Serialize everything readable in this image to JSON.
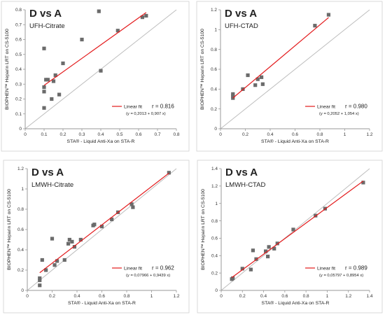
{
  "chart_data": [
    {
      "type": "scatter",
      "title": "D vs A",
      "subtitle": "UFH-Citrate",
      "xlabel": "STA® - Liquid Anti-Xa on STA-R",
      "ylabel": "BIOPHEN™ Heparin LRT on CS-5100",
      "xlim": [
        0,
        0.8
      ],
      "ylim": [
        0,
        0.8
      ],
      "xticks": [
        "0",
        "0.1",
        "0.2",
        "0.3",
        "0.4",
        "0.5",
        "0.6",
        "0.7",
        "0.8"
      ],
      "yticks": [
        "0",
        "0.1",
        "0.2",
        "0.3",
        "0.4",
        "0.5",
        "0.6",
        "0.7",
        "0.8"
      ],
      "tick_step": 0.1,
      "points": [
        {
          "x": 0.1,
          "y": 0.14
        },
        {
          "x": 0.1,
          "y": 0.28
        },
        {
          "x": 0.1,
          "y": 0.54
        },
        {
          "x": 0.11,
          "y": 0.33
        },
        {
          "x": 0.12,
          "y": 0.33
        },
        {
          "x": 0.14,
          "y": 0.2
        },
        {
          "x": 0.15,
          "y": 0.32
        },
        {
          "x": 0.16,
          "y": 0.36
        },
        {
          "x": 0.18,
          "y": 0.23
        },
        {
          "x": 0.2,
          "y": 0.44
        },
        {
          "x": 0.1,
          "y": 0.25
        },
        {
          "x": 0.3,
          "y": 0.6
        },
        {
          "x": 0.39,
          "y": 0.79
        },
        {
          "x": 0.4,
          "y": 0.39
        },
        {
          "x": 0.49,
          "y": 0.66
        },
        {
          "x": 0.62,
          "y": 0.75
        },
        {
          "x": 0.64,
          "y": 0.76
        }
      ],
      "fit": {
        "intercept": 0.2013,
        "slope": 0.907,
        "x_range": [
          0.1,
          0.64
        ]
      },
      "legend": {
        "label": "Linear fit",
        "r": "r = 0.816",
        "equation": "(y = 0,2013 + 0,907 x)",
        "position": "bottom-right"
      },
      "identity_line": true,
      "grid": false
    },
    {
      "type": "scatter",
      "title": "D vs A",
      "subtitle": "UFH-CTAD",
      "xlabel": "STA® - Liquid Anti-Xa on STA-R",
      "ylabel": "BIOPHEN™ Heparin LRT on CS-5100",
      "xlim": [
        0,
        1.2
      ],
      "ylim": [
        0,
        1.2
      ],
      "xticks": [
        "0",
        "0.2",
        "0.4",
        "0.6",
        "0.8",
        "1",
        "1.2"
      ],
      "yticks": [
        "0",
        "0.2",
        "0.4",
        "0.6",
        "0.8",
        "1",
        "1.2"
      ],
      "tick_step": 0.2,
      "points": [
        {
          "x": 0.1,
          "y": 0.35
        },
        {
          "x": 0.1,
          "y": 0.31
        },
        {
          "x": 0.1,
          "y": 0.33
        },
        {
          "x": 0.18,
          "y": 0.4
        },
        {
          "x": 0.22,
          "y": 0.54
        },
        {
          "x": 0.28,
          "y": 0.44
        },
        {
          "x": 0.3,
          "y": 0.5
        },
        {
          "x": 0.33,
          "y": 0.52
        },
        {
          "x": 0.34,
          "y": 0.45
        },
        {
          "x": 0.76,
          "y": 1.04
        },
        {
          "x": 0.87,
          "y": 1.15
        }
      ],
      "fit": {
        "intercept": 0.2052,
        "slope": 1.054,
        "x_range": [
          0.1,
          0.87
        ]
      },
      "legend": {
        "label": "Linear fit",
        "r": "r = 0.980",
        "equation": "(y = 0,2052 + 1,054 x)",
        "position": "bottom-right"
      },
      "identity_line": true,
      "grid": false
    },
    {
      "type": "scatter",
      "title": "D vs A",
      "subtitle": "LMWH-Citrate",
      "xlabel": "STA® - Liquid Anti-Xa on STA-R",
      "ylabel": "BIOPHEN™ Heparin LRT on CS-5100",
      "xlim": [
        0,
        1.2
      ],
      "ylim": [
        0,
        1.2
      ],
      "xticks": [
        "0",
        "0.2",
        "0.4",
        "0.6",
        "0.8",
        "1",
        "1.2"
      ],
      "yticks": [
        "0",
        "0.2",
        "0.4",
        "0.6",
        "0.8",
        "1",
        "1.2"
      ],
      "tick_step": 0.2,
      "points": [
        {
          "x": 0.1,
          "y": 0.05
        },
        {
          "x": 0.1,
          "y": 0.1
        },
        {
          "x": 0.1,
          "y": 0.12
        },
        {
          "x": 0.12,
          "y": 0.3
        },
        {
          "x": 0.15,
          "y": 0.2
        },
        {
          "x": 0.2,
          "y": 0.51
        },
        {
          "x": 0.22,
          "y": 0.25
        },
        {
          "x": 0.24,
          "y": 0.29
        },
        {
          "x": 0.3,
          "y": 0.3
        },
        {
          "x": 0.33,
          "y": 0.46
        },
        {
          "x": 0.34,
          "y": 0.5
        },
        {
          "x": 0.36,
          "y": 0.48
        },
        {
          "x": 0.38,
          "y": 0.43
        },
        {
          "x": 0.43,
          "y": 0.5
        },
        {
          "x": 0.53,
          "y": 0.64
        },
        {
          "x": 0.54,
          "y": 0.65
        },
        {
          "x": 0.6,
          "y": 0.63
        },
        {
          "x": 0.68,
          "y": 0.7
        },
        {
          "x": 0.73,
          "y": 0.77
        },
        {
          "x": 0.84,
          "y": 0.85
        },
        {
          "x": 0.85,
          "y": 0.82
        },
        {
          "x": 1.14,
          "y": 1.16
        }
      ],
      "fit": {
        "intercept": 0.07966,
        "slope": 0.9439,
        "x_range": [
          0.1,
          1.14
        ]
      },
      "legend": {
        "label": "Linear fit",
        "r": "r = 0.962",
        "equation": "(y = 0,07966 + 0,9439 x)",
        "position": "bottom-right"
      },
      "identity_line": true,
      "grid": false
    },
    {
      "type": "scatter",
      "title": "D vs A",
      "subtitle": "LMWH-CTAD",
      "xlabel": "STA® - Liquid Anti-Xa on STA-R",
      "ylabel": "BIOPHEN™ Heparin LRT on CS-5100",
      "xlim": [
        0,
        1.4
      ],
      "ylim": [
        0,
        1.4
      ],
      "xticks": [
        "0",
        "0.2",
        "0.4",
        "0.6",
        "0.8",
        "1",
        "1.2",
        "1.4"
      ],
      "yticks": [
        "0",
        "0.2",
        "0.4",
        "0.6",
        "0.8",
        "1",
        "1.2",
        "1.4"
      ],
      "tick_step": 0.2,
      "points": [
        {
          "x": 0.1,
          "y": 0.13
        },
        {
          "x": 0.11,
          "y": 0.14
        },
        {
          "x": 0.2,
          "y": 0.25
        },
        {
          "x": 0.28,
          "y": 0.24
        },
        {
          "x": 0.3,
          "y": 0.46
        },
        {
          "x": 0.33,
          "y": 0.36
        },
        {
          "x": 0.42,
          "y": 0.45
        },
        {
          "x": 0.44,
          "y": 0.39
        },
        {
          "x": 0.45,
          "y": 0.5
        },
        {
          "x": 0.5,
          "y": 0.48
        },
        {
          "x": 0.53,
          "y": 0.54
        },
        {
          "x": 0.68,
          "y": 0.7
        },
        {
          "x": 0.89,
          "y": 0.86
        },
        {
          "x": 0.98,
          "y": 0.94
        },
        {
          "x": 1.34,
          "y": 1.24
        }
      ],
      "fit": {
        "intercept": 0.05797,
        "slope": 0.8954,
        "x_range": [
          0.1,
          1.34
        ]
      },
      "legend": {
        "label": "Linear fit",
        "r": "r = 0.989",
        "equation": "(y = 0,05797 + 0,8954 x)",
        "position": "bottom-right"
      },
      "identity_line": true,
      "grid": false
    }
  ],
  "colors": {
    "points": "#6b6b6b",
    "fit_line": "#e31a1c",
    "identity_line": "#bdbdbd",
    "axis": "#9a9a9a"
  }
}
